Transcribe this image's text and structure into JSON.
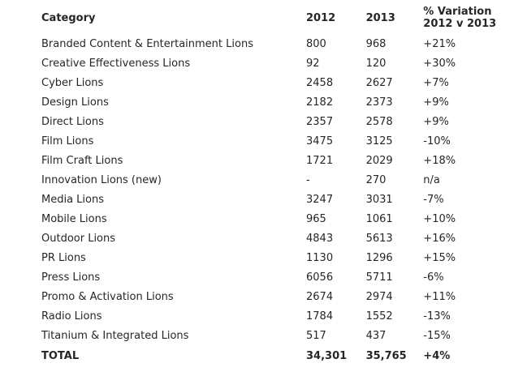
{
  "colors": {
    "background": "#ffffff",
    "text": "#262626"
  },
  "chart_data": {
    "type": "table",
    "columns": {
      "category": "Category",
      "y2012": "2012",
      "y2013": "2013",
      "variation_line1": "% Variation",
      "variation_line2": "2012 v 2013"
    },
    "rows": [
      {
        "category": "Branded Content & Entertainment Lions",
        "y2012": "800",
        "y2013": "968",
        "variation": "+21%"
      },
      {
        "category": "Creative Effectiveness Lions",
        "y2012": "92",
        "y2013": "120",
        "variation": "+30%"
      },
      {
        "category": "Cyber Lions",
        "y2012": "2458",
        "y2013": "2627",
        "variation": "+7%"
      },
      {
        "category": "Design Lions",
        "y2012": "2182",
        "y2013": "2373",
        "variation": "+9%"
      },
      {
        "category": "Direct Lions",
        "y2012": "2357",
        "y2013": "2578",
        "variation": "+9%"
      },
      {
        "category": "Film Lions",
        "y2012": "3475",
        "y2013": "3125",
        "variation": "-10%"
      },
      {
        "category": "Film Craft Lions",
        "y2012": "1721",
        "y2013": "2029",
        "variation": "+18%"
      },
      {
        "category": "Innovation Lions (new)",
        "y2012": "-",
        "y2013": "270",
        "variation": "n/a"
      },
      {
        "category": "Media Lions",
        "y2012": "3247",
        "y2013": "3031",
        "variation": "-7%"
      },
      {
        "category": "Mobile Lions",
        "y2012": "965",
        "y2013": "1061",
        "variation": "+10%"
      },
      {
        "category": "Outdoor Lions",
        "y2012": "4843",
        "y2013": "5613",
        "variation": "+16%"
      },
      {
        "category": "PR Lions",
        "y2012": "1130",
        "y2013": "1296",
        "variation": "+15%"
      },
      {
        "category": "Press Lions",
        "y2012": "6056",
        "y2013": "5711",
        "variation": "-6%"
      },
      {
        "category": "Promo & Activation Lions",
        "y2012": "2674",
        "y2013": "2974",
        "variation": "+11%"
      },
      {
        "category": "Radio Lions",
        "y2012": "1784",
        "y2013": "1552",
        "variation": "-13%"
      },
      {
        "category": "Titanium & Integrated Lions",
        "y2012": "517",
        "y2013": "437",
        "variation": "-15%"
      }
    ],
    "total": {
      "category": "TOTAL",
      "y2012": "34,301",
      "y2013": "35,765",
      "variation": "+4%"
    }
  }
}
